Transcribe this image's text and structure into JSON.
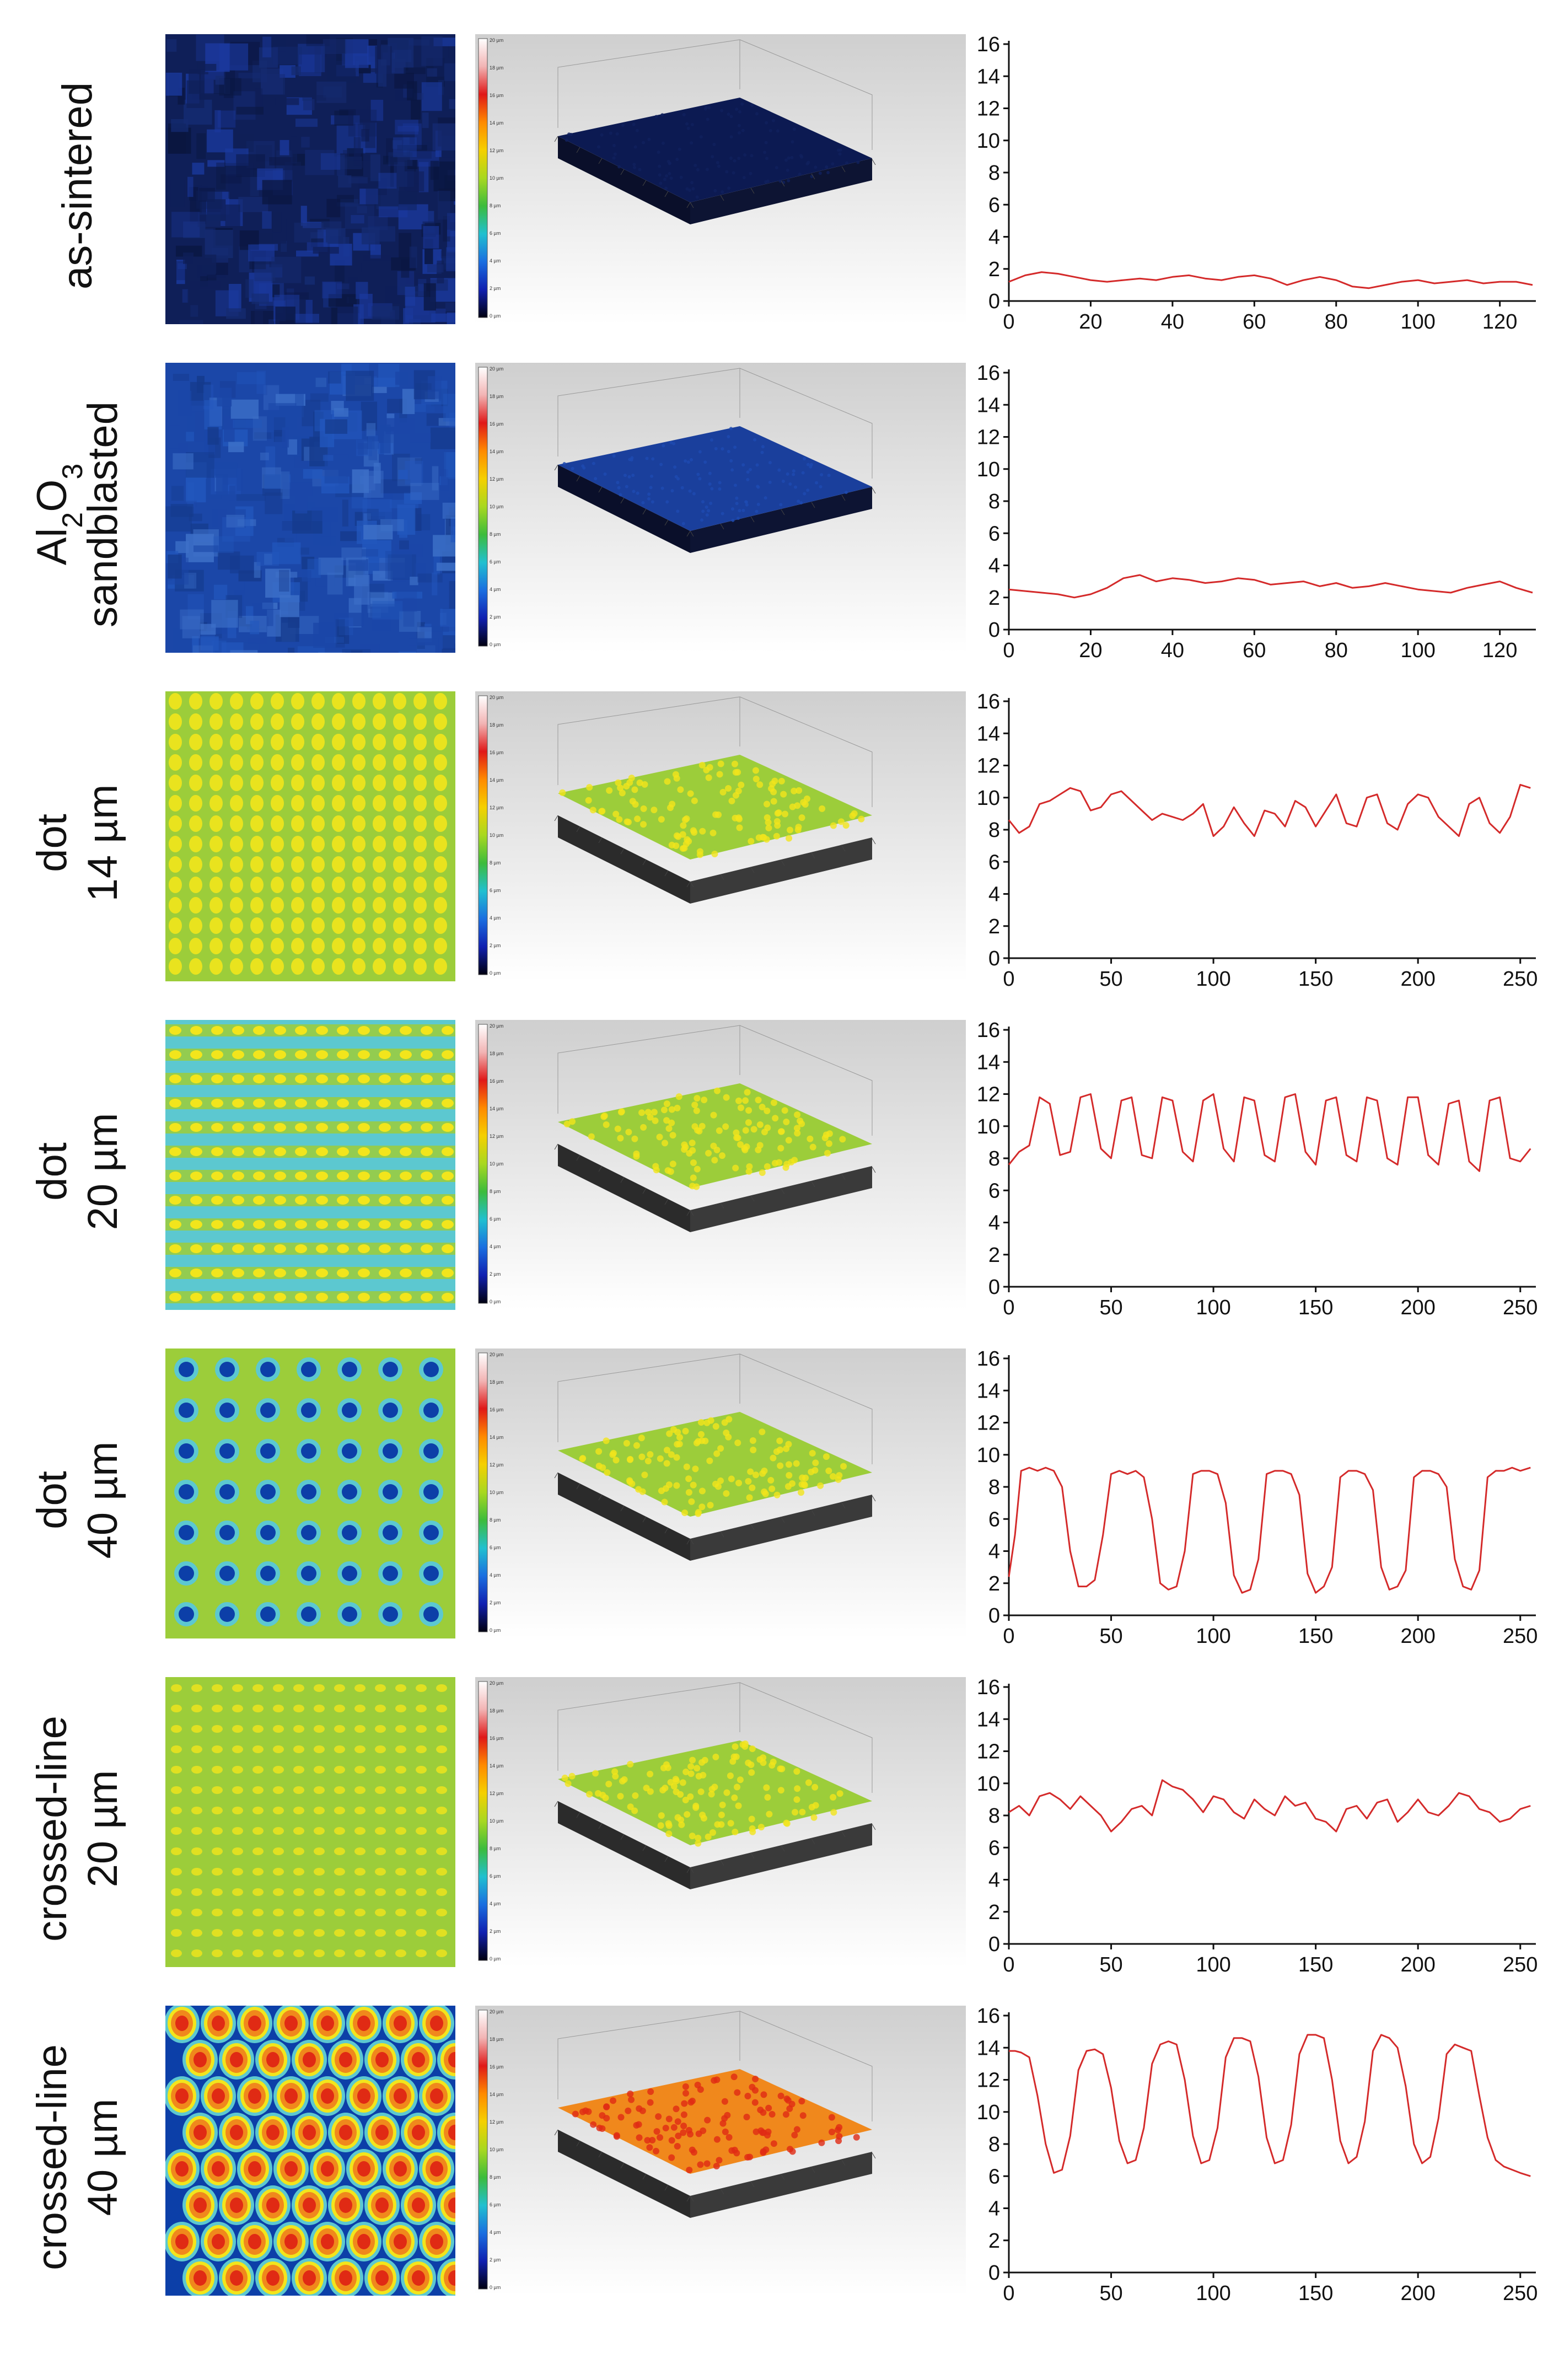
{
  "profile_axis": {
    "y_ticks": [
      "0",
      "2",
      "4",
      "6",
      "8",
      "10",
      "12",
      "14",
      "16"
    ],
    "ylim": [
      0,
      16
    ],
    "line_color": "#d42a2a"
  },
  "colorbar": {
    "labels": [
      "20 µm",
      "18 µm",
      "16 µm",
      "14 µm",
      "12 µm",
      "10 µm",
      "8 µm",
      "6 µm",
      "4 µm",
      "2 µm",
      "0 µm"
    ],
    "colors": [
      "#ffffff",
      "#f2b4b4",
      "#e01818",
      "#ff8a00",
      "#f5d000",
      "#a8d820",
      "#3cbc3c",
      "#20c0d0",
      "#1a6ee0",
      "#1020b0",
      "#000010"
    ]
  },
  "palette": {
    "as_sintered": [
      "#0f1f58",
      "#152b72",
      "#1b3aa0",
      "#0a1640"
    ],
    "sandblasted": [
      "#1b47a8",
      "#2257bd",
      "#3d70c8",
      "#153a8c"
    ],
    "green": "#9ccd3a",
    "yellow": "#f2e51c",
    "cyan": "#5cc8d0",
    "blue": "#0c3fa8",
    "orange": "#f0881c",
    "red": "#e02a14"
  },
  "rows": [
    {
      "label_lines": [
        "as-sintered"
      ],
      "pattern": "as_sintered",
      "chart_data": {
        "type": "line",
        "xlim": [
          0,
          128
        ],
        "x_ticks": [
          "0",
          "20",
          "40",
          "60",
          "80",
          "100",
          "120"
        ],
        "ylim": [
          0,
          16
        ],
        "x": [
          0,
          4,
          8,
          12,
          16,
          20,
          24,
          28,
          32,
          36,
          40,
          44,
          48,
          52,
          56,
          60,
          64,
          68,
          72,
          76,
          80,
          84,
          88,
          92,
          96,
          100,
          104,
          108,
          112,
          116,
          120,
          124,
          128
        ],
        "y": [
          1.2,
          1.6,
          1.8,
          1.7,
          1.5,
          1.3,
          1.2,
          1.3,
          1.4,
          1.3,
          1.5,
          1.6,
          1.4,
          1.3,
          1.5,
          1.6,
          1.4,
          1.0,
          1.3,
          1.5,
          1.3,
          0.9,
          0.8,
          1.0,
          1.2,
          1.3,
          1.1,
          1.2,
          1.3,
          1.1,
          1.2,
          1.2,
          1.0
        ]
      }
    },
    {
      "label_lines": [
        "Al2O3",
        "sandblasted"
      ],
      "pattern": "sandblasted",
      "chart_data": {
        "type": "line",
        "xlim": [
          0,
          128
        ],
        "x_ticks": [
          "0",
          "20",
          "40",
          "60",
          "80",
          "100",
          "120"
        ],
        "ylim": [
          0,
          16
        ],
        "x": [
          0,
          4,
          8,
          12,
          16,
          20,
          24,
          28,
          32,
          36,
          40,
          44,
          48,
          52,
          56,
          60,
          64,
          68,
          72,
          76,
          80,
          84,
          88,
          92,
          96,
          100,
          104,
          108,
          112,
          116,
          120,
          124,
          128
        ],
        "y": [
          2.5,
          2.4,
          2.3,
          2.2,
          2.0,
          2.2,
          2.6,
          3.2,
          3.4,
          3.0,
          3.2,
          3.1,
          2.9,
          3.0,
          3.2,
          3.1,
          2.8,
          2.9,
          3.0,
          2.7,
          2.9,
          2.6,
          2.7,
          2.9,
          2.7,
          2.5,
          2.4,
          2.3,
          2.6,
          2.8,
          3.0,
          2.6,
          2.3
        ]
      }
    },
    {
      "label_lines": [
        "dot",
        "14 µm"
      ],
      "pattern": "dot14",
      "chart_data": {
        "type": "line",
        "xlim": [
          0,
          256
        ],
        "x_ticks": [
          "0",
          "50",
          "100",
          "150",
          "200",
          "250"
        ],
        "ylim": [
          0,
          16
        ],
        "x": [
          0,
          5,
          10,
          15,
          20,
          25,
          30,
          35,
          40,
          45,
          50,
          55,
          60,
          65,
          70,
          75,
          80,
          85,
          90,
          95,
          100,
          105,
          110,
          115,
          120,
          125,
          130,
          135,
          140,
          145,
          150,
          155,
          160,
          165,
          170,
          175,
          180,
          185,
          190,
          195,
          200,
          205,
          210,
          215,
          220,
          225,
          230,
          235,
          240,
          245,
          250,
          255
        ],
        "y": [
          8.6,
          7.8,
          8.2,
          9.6,
          9.8,
          10.2,
          10.6,
          10.4,
          9.2,
          9.4,
          10.2,
          10.4,
          9.8,
          9.2,
          8.6,
          9.0,
          8.8,
          8.6,
          9.0,
          9.6,
          7.6,
          8.2,
          9.4,
          8.4,
          7.6,
          9.2,
          9.0,
          8.2,
          9.8,
          9.4,
          8.2,
          9.2,
          10.2,
          8.4,
          8.2,
          10.0,
          10.2,
          8.4,
          8.0,
          9.6,
          10.2,
          10.0,
          8.8,
          8.2,
          7.6,
          9.6,
          10.0,
          8.4,
          7.8,
          8.8,
          10.8,
          10.6
        ]
      }
    },
    {
      "label_lines": [
        "dot",
        "20 µm"
      ],
      "pattern": "dot20",
      "chart_data": {
        "type": "line",
        "xlim": [
          0,
          256
        ],
        "x_ticks": [
          "0",
          "50",
          "100",
          "150",
          "200",
          "250"
        ],
        "ylim": [
          0,
          16
        ],
        "x": [
          0,
          5,
          10,
          15,
          20,
          25,
          30,
          35,
          40,
          45,
          50,
          55,
          60,
          65,
          70,
          75,
          80,
          85,
          90,
          95,
          100,
          105,
          110,
          115,
          120,
          125,
          130,
          135,
          140,
          145,
          150,
          155,
          160,
          165,
          170,
          175,
          180,
          185,
          190,
          195,
          200,
          205,
          210,
          215,
          220,
          225,
          230,
          235,
          240,
          245,
          250,
          255
        ],
        "y": [
          7.6,
          8.4,
          8.8,
          11.8,
          11.4,
          8.2,
          8.4,
          11.8,
          12.0,
          8.6,
          8.0,
          11.6,
          11.8,
          8.2,
          8.0,
          11.8,
          11.6,
          8.4,
          7.8,
          11.6,
          12.0,
          8.6,
          7.8,
          11.8,
          11.6,
          8.2,
          7.8,
          11.8,
          12.0,
          8.4,
          7.6,
          11.6,
          11.8,
          8.2,
          7.8,
          11.8,
          11.6,
          8.0,
          7.6,
          11.8,
          11.8,
          8.2,
          7.6,
          11.4,
          11.6,
          7.8,
          7.2,
          11.6,
          11.8,
          8.0,
          7.8,
          8.6
        ]
      }
    },
    {
      "label_lines": [
        "dot",
        "40 µm"
      ],
      "pattern": "dot40",
      "chart_data": {
        "type": "line",
        "xlim": [
          0,
          256
        ],
        "x_ticks": [
          "0",
          "50",
          "100",
          "150",
          "200",
          "250"
        ],
        "ylim": [
          0,
          16
        ],
        "x": [
          0,
          3,
          6,
          10,
          14,
          18,
          22,
          26,
          30,
          34,
          38,
          42,
          46,
          50,
          54,
          58,
          62,
          66,
          70,
          74,
          78,
          82,
          86,
          90,
          94,
          98,
          102,
          106,
          110,
          114,
          118,
          122,
          126,
          130,
          134,
          138,
          142,
          146,
          150,
          154,
          158,
          162,
          166,
          170,
          174,
          178,
          182,
          186,
          190,
          194,
          198,
          202,
          206,
          210,
          214,
          218,
          222,
          226,
          230,
          234,
          238,
          242,
          246,
          250,
          255
        ],
        "y": [
          2.4,
          5.0,
          9.0,
          9.2,
          9.0,
          9.2,
          9.0,
          8.0,
          4.0,
          1.8,
          1.8,
          2.2,
          5.0,
          8.8,
          9.0,
          8.8,
          9.0,
          8.6,
          6.0,
          2.0,
          1.6,
          1.8,
          4.0,
          8.8,
          9.0,
          9.0,
          8.8,
          7.0,
          2.5,
          1.4,
          1.6,
          3.5,
          8.8,
          9.0,
          9.0,
          8.8,
          7.5,
          2.6,
          1.4,
          1.8,
          3.0,
          8.6,
          9.0,
          9.0,
          8.8,
          7.8,
          3.0,
          1.6,
          1.8,
          2.8,
          8.6,
          9.0,
          9.0,
          8.8,
          8.0,
          3.5,
          1.8,
          1.6,
          2.8,
          8.6,
          9.0,
          9.0,
          9.2,
          9.0,
          9.2
        ]
      }
    },
    {
      "label_lines": [
        "crossed-line",
        "20 µm"
      ],
      "pattern": "cross20",
      "chart_data": {
        "type": "line",
        "xlim": [
          0,
          256
        ],
        "x_ticks": [
          "0",
          "50",
          "100",
          "150",
          "200",
          "250"
        ],
        "ylim": [
          0,
          16
        ],
        "x": [
          0,
          5,
          10,
          15,
          20,
          25,
          30,
          35,
          40,
          45,
          50,
          55,
          60,
          65,
          70,
          75,
          80,
          85,
          90,
          95,
          100,
          105,
          110,
          115,
          120,
          125,
          130,
          135,
          140,
          145,
          150,
          155,
          160,
          165,
          170,
          175,
          180,
          185,
          190,
          195,
          200,
          205,
          210,
          215,
          220,
          225,
          230,
          235,
          240,
          245,
          250,
          255
        ],
        "y": [
          8.2,
          8.6,
          8.0,
          9.2,
          9.4,
          9.0,
          8.4,
          9.2,
          8.6,
          8.0,
          7.0,
          7.6,
          8.4,
          8.6,
          8.0,
          10.2,
          9.8,
          9.6,
          9.0,
          8.2,
          9.2,
          9.0,
          8.2,
          7.8,
          9.0,
          8.4,
          8.0,
          9.2,
          8.6,
          8.8,
          7.8,
          7.6,
          7.0,
          8.4,
          8.6,
          7.8,
          8.8,
          9.0,
          7.6,
          8.2,
          9.0,
          8.2,
          8.0,
          8.6,
          9.4,
          9.2,
          8.4,
          8.2,
          7.6,
          7.8,
          8.4,
          8.6
        ]
      }
    },
    {
      "label_lines": [
        "crossed-line",
        "40 µm"
      ],
      "pattern": "cross40",
      "chart_data": {
        "type": "line",
        "xlim": [
          0,
          256
        ],
        "x_ticks": [
          "0",
          "50",
          "100",
          "150",
          "200",
          "250"
        ],
        "ylim": [
          0,
          16
        ],
        "x": [
          0,
          3,
          6,
          10,
          14,
          18,
          22,
          26,
          30,
          34,
          38,
          42,
          46,
          50,
          54,
          58,
          62,
          66,
          70,
          74,
          78,
          82,
          86,
          90,
          94,
          98,
          102,
          106,
          110,
          114,
          118,
          122,
          126,
          130,
          134,
          138,
          142,
          146,
          150,
          154,
          158,
          162,
          166,
          170,
          174,
          178,
          182,
          186,
          190,
          194,
          198,
          202,
          206,
          210,
          214,
          218,
          222,
          226,
          230,
          234,
          238,
          242,
          246,
          250,
          255
        ],
        "y": [
          13.8,
          13.8,
          13.7,
          13.4,
          11.0,
          8.0,
          6.2,
          6.4,
          8.5,
          12.6,
          13.8,
          13.9,
          13.6,
          11.5,
          8.2,
          6.8,
          7.0,
          9.0,
          13.0,
          14.2,
          14.4,
          14.2,
          12.0,
          8.5,
          6.8,
          7.0,
          9.0,
          13.4,
          14.6,
          14.6,
          14.4,
          12.2,
          8.4,
          6.8,
          7.0,
          9.2,
          13.6,
          14.8,
          14.8,
          14.6,
          12.0,
          8.2,
          6.8,
          7.2,
          9.4,
          13.8,
          14.8,
          14.6,
          14.0,
          11.6,
          8.0,
          6.8,
          7.2,
          9.6,
          13.6,
          14.2,
          14.0,
          13.8,
          11.0,
          8.4,
          7.0,
          6.6,
          6.4,
          6.2,
          6.0
        ]
      }
    }
  ]
}
